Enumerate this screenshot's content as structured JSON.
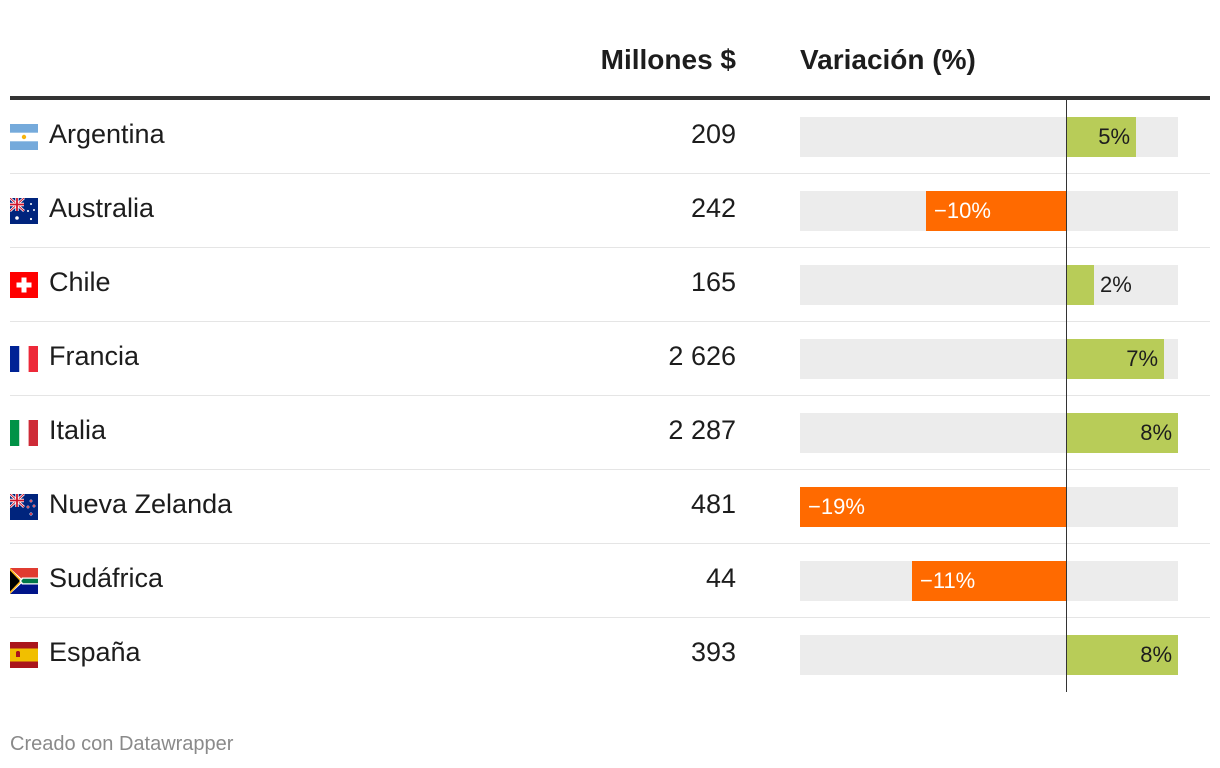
{
  "header": {
    "millions_label": "Millones $",
    "variation_label": "Variación (%)"
  },
  "footer": {
    "credit": "Creado con Datawrapper"
  },
  "colors": {
    "positive": "#b8cc58",
    "negative": "#ff6a00",
    "bar_background": "#ececec"
  },
  "chart_data": {
    "type": "table",
    "columns": [
      "",
      "Millones $",
      "Variación (%)"
    ],
    "variation_range": [
      -19,
      8
    ],
    "rows": [
      {
        "flag": "argentina-flag-icon",
        "country": "Argentina",
        "millions": "209",
        "variation": 5,
        "variation_label": "5%"
      },
      {
        "flag": "australia-flag-icon",
        "country": "Australia",
        "millions": "242",
        "variation": -10,
        "variation_label": "−10%"
      },
      {
        "flag": "switzerland-flag-icon",
        "country": "Chile",
        "millions": "165",
        "variation": 2,
        "variation_label": "2%"
      },
      {
        "flag": "france-flag-icon",
        "country": "Francia",
        "millions": "2 626",
        "variation": 7,
        "variation_label": "7%"
      },
      {
        "flag": "italy-flag-icon",
        "country": "Italia",
        "millions": "2 287",
        "variation": 8,
        "variation_label": "8%"
      },
      {
        "flag": "new-zealand-flag-icon",
        "country": "Nueva Zelanda",
        "millions": "481",
        "variation": -19,
        "variation_label": "−19%"
      },
      {
        "flag": "south-africa-flag-icon",
        "country": "Sudáfrica",
        "millions": "44",
        "variation": -11,
        "variation_label": "−11%"
      },
      {
        "flag": "spain-flag-icon",
        "country": "España",
        "millions": "393",
        "variation": 8,
        "variation_label": "8%"
      }
    ]
  }
}
